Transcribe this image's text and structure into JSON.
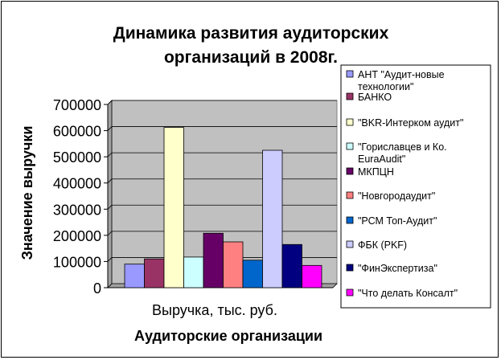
{
  "chart_data": {
    "type": "bar",
    "title_lines": [
      "Динамика развития аудиторских",
      "организаций в 2008г."
    ],
    "ylabel": "Значение выручки",
    "xlabel": "Аудиторские организации",
    "category_label": "Выручка, тыс. руб.",
    "ylim": [
      0,
      700000
    ],
    "yticks": [
      0,
      100000,
      200000,
      300000,
      400000,
      500000,
      600000,
      700000
    ],
    "ytick_labels": [
      "0",
      "100000",
      "200000",
      "300000",
      "400000",
      "500000",
      "600000",
      "700000"
    ],
    "grid": true,
    "legend_position": "right",
    "series": [
      {
        "name": "АНТ \"Аудит-новые технологии\"",
        "value": 90000,
        "color": "#9999FF"
      },
      {
        "name": "БАНКО",
        "value": 110000,
        "color": "#993366"
      },
      {
        "name": "\"BKR-Интерком аудит\"",
        "value": 612000,
        "color": "#FFFFCC"
      },
      {
        "name": "\"Гориславцев и Ко. EuraAudit\"",
        "value": 117000,
        "color": "#CCFFFF"
      },
      {
        "name": "МКПЦН",
        "value": 208000,
        "color": "#660066"
      },
      {
        "name": "\"Новгородаудит\"",
        "value": 175000,
        "color": "#FF8080"
      },
      {
        "name": "\"РСМ Топ-Аудит\"",
        "value": 105000,
        "color": "#0066CC"
      },
      {
        "name": "ФБК (PKF)",
        "value": 525000,
        "color": "#CCCCFF"
      },
      {
        "name": "\"ФинЭкспертиза\"",
        "value": 165000,
        "color": "#000080"
      },
      {
        "name": "\"Что делать Консалт\"",
        "value": 85000,
        "color": "#FF00FF"
      }
    ],
    "plot_background": "#C0C0C0"
  }
}
